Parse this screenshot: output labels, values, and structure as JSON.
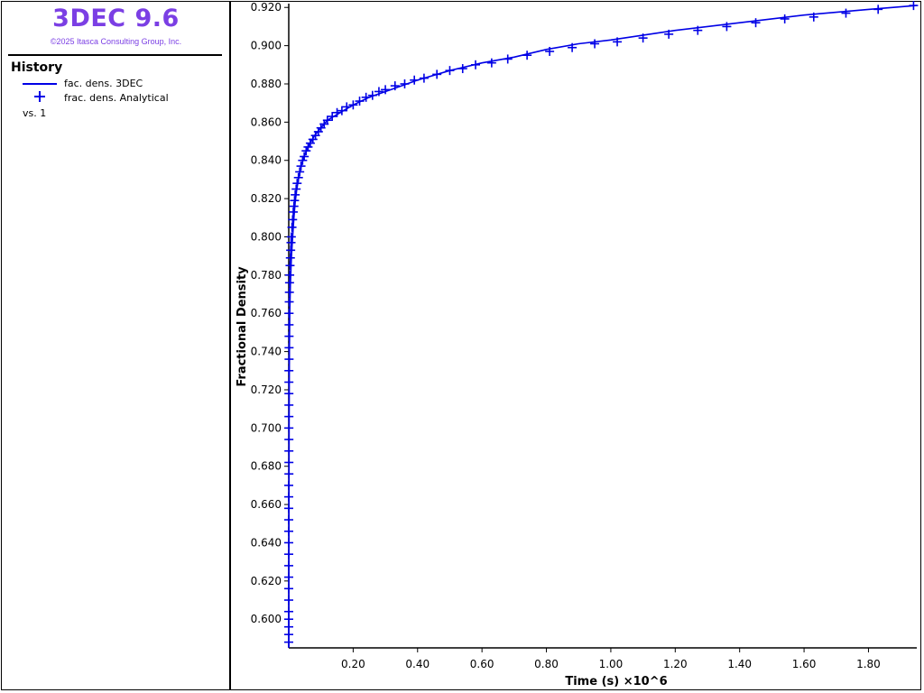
{
  "app": {
    "title": "3DEC 9.6",
    "copyright": "©2025 Itasca Consulting Group, Inc."
  },
  "legend": {
    "heading": "History",
    "items": [
      {
        "label": "fac. dens. 3DEC",
        "marker": "line",
        "color": "#0000e6"
      },
      {
        "label": "frac. dens. Analytical",
        "marker": "plus",
        "color": "#0000e6"
      }
    ],
    "vs_label": "vs. 1"
  },
  "chart_data": {
    "type": "line",
    "xlabel": "Time (s) ×10^6",
    "ylabel": "Fractional Density",
    "xlim": [
      0,
      1.95
    ],
    "ylim": [
      0.585,
      0.922
    ],
    "x_ticks": [
      0.2,
      0.4,
      0.6,
      0.8,
      1.0,
      1.2,
      1.4,
      1.6,
      1.8
    ],
    "x_tick_labels": [
      "0.20",
      "0.40",
      "0.60",
      "0.80",
      "1.00",
      "1.20",
      "1.40",
      "1.60",
      "1.80"
    ],
    "y_ticks": [
      0.6,
      0.62,
      0.64,
      0.66,
      0.68,
      0.7,
      0.72,
      0.74,
      0.76,
      0.78,
      0.8,
      0.82,
      0.84,
      0.86,
      0.88,
      0.9,
      0.92
    ],
    "y_tick_labels": [
      "0.600",
      "0.620",
      "0.640",
      "0.660",
      "0.680",
      "0.700",
      "0.720",
      "0.740",
      "0.760",
      "0.780",
      "0.800",
      "0.820",
      "0.840",
      "0.860",
      "0.880",
      "0.900",
      "0.920"
    ],
    "grid": false,
    "series": [
      {
        "name": "fac. dens. 3DEC",
        "style": "line",
        "color": "#0000e6",
        "x": [
          0,
          0.0003,
          0.001,
          0.002,
          0.003,
          0.005,
          0.008,
          0.012,
          0.016,
          0.02,
          0.025,
          0.03,
          0.04,
          0.05,
          0.06,
          0.08,
          0.1,
          0.12,
          0.15,
          0.2,
          0.25,
          0.3,
          0.4,
          0.5,
          0.6,
          0.7,
          0.8,
          0.9,
          1.0,
          1.2,
          1.4,
          1.6,
          1.8,
          1.95
        ],
        "y": [
          0.585,
          0.62,
          0.7,
          0.74,
          0.76,
          0.775,
          0.789,
          0.8,
          0.81,
          0.818,
          0.825,
          0.83,
          0.838,
          0.843,
          0.847,
          0.853,
          0.857,
          0.861,
          0.864,
          0.869,
          0.873,
          0.876,
          0.882,
          0.887,
          0.891,
          0.894,
          0.898,
          0.901,
          0.903,
          0.908,
          0.912,
          0.916,
          0.919,
          0.921
        ]
      },
      {
        "name": "frac. dens. Analytical",
        "style": "plus",
        "color": "#0000e6",
        "x": [
          0,
          0,
          0,
          0,
          0,
          0,
          0,
          0,
          0,
          0,
          0,
          0,
          0,
          0,
          0,
          0,
          0.0005,
          0.0005,
          0.0005,
          0.0005,
          0.0005,
          0.0005,
          0.0005,
          0.0005,
          0.0005,
          0.0005,
          0.001,
          0.001,
          0.001,
          0.001,
          0.001,
          0.0015,
          0.002,
          0.0025,
          0.003,
          0.004,
          0.005,
          0.006,
          0.007,
          0.008,
          0.01,
          0.012,
          0.014,
          0.016,
          0.018,
          0.02,
          0.023,
          0.026,
          0.03,
          0.034,
          0.038,
          0.043,
          0.048,
          0.054,
          0.06,
          0.067,
          0.075,
          0.083,
          0.092,
          0.1,
          0.11,
          0.12,
          0.135,
          0.15,
          0.165,
          0.18,
          0.2,
          0.22,
          0.24,
          0.26,
          0.28,
          0.3,
          0.33,
          0.36,
          0.39,
          0.42,
          0.46,
          0.5,
          0.54,
          0.58,
          0.63,
          0.68,
          0.74,
          0.81,
          0.88,
          0.95,
          1.02,
          1.1,
          1.18,
          1.27,
          1.36,
          1.45,
          1.54,
          1.63,
          1.73,
          1.83,
          1.94
        ],
        "y": [
          0.588,
          0.592,
          0.596,
          0.6,
          0.604,
          0.61,
          0.616,
          0.622,
          0.628,
          0.634,
          0.64,
          0.646,
          0.652,
          0.658,
          0.664,
          0.67,
          0.676,
          0.682,
          0.688,
          0.694,
          0.7,
          0.706,
          0.712,
          0.718,
          0.724,
          0.73,
          0.736,
          0.742,
          0.748,
          0.754,
          0.76,
          0.766,
          0.771,
          0.776,
          0.78,
          0.785,
          0.789,
          0.793,
          0.797,
          0.8,
          0.805,
          0.809,
          0.813,
          0.816,
          0.819,
          0.822,
          0.825,
          0.828,
          0.831,
          0.834,
          0.837,
          0.84,
          0.842,
          0.845,
          0.847,
          0.849,
          0.851,
          0.853,
          0.855,
          0.857,
          0.859,
          0.861,
          0.863,
          0.865,
          0.866,
          0.868,
          0.869,
          0.871,
          0.873,
          0.874,
          0.876,
          0.877,
          0.879,
          0.88,
          0.882,
          0.883,
          0.885,
          0.887,
          0.888,
          0.89,
          0.891,
          0.893,
          0.895,
          0.897,
          0.899,
          0.901,
          0.902,
          0.904,
          0.906,
          0.908,
          0.91,
          0.912,
          0.914,
          0.915,
          0.917,
          0.919,
          0.921
        ]
      }
    ]
  }
}
